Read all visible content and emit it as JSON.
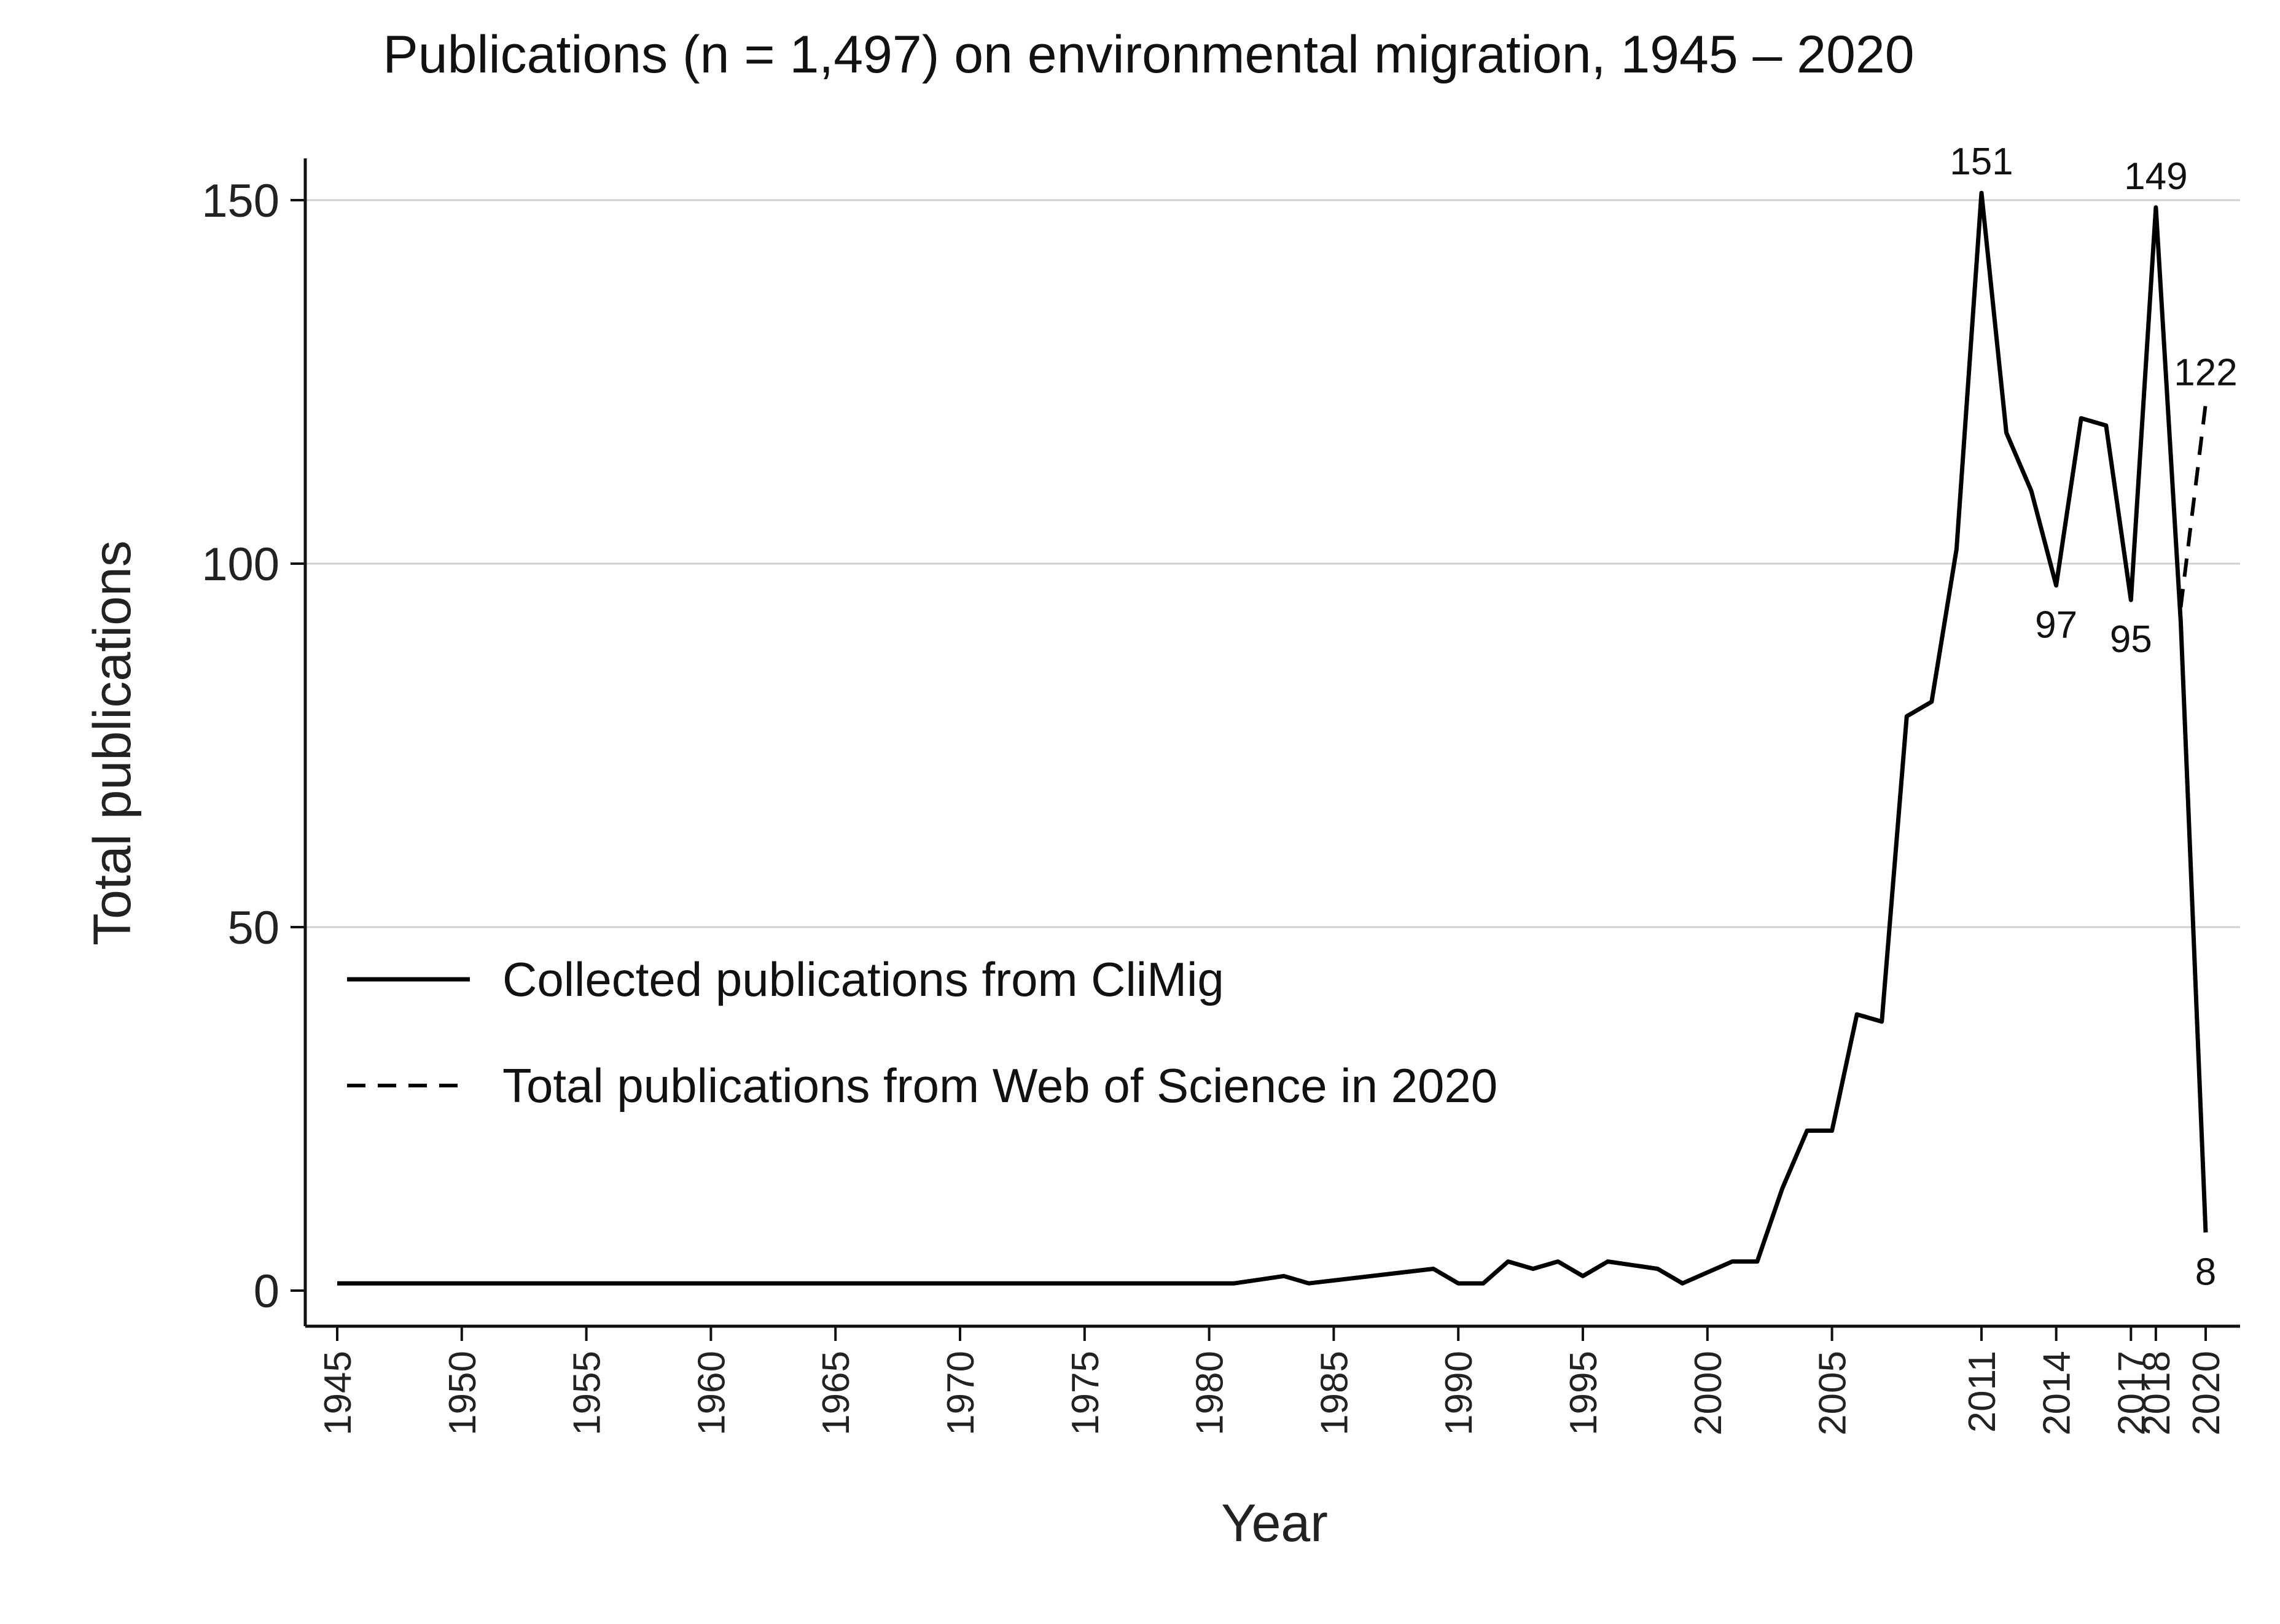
{
  "chart_data": {
    "type": "line",
    "title": "Publications (n = 1,497) on environmental migration, 1945 – 2020",
    "xlabel": "Year",
    "ylabel": "Total publications",
    "xlim": [
      1945,
      2020
    ],
    "ylim": [
      -4,
      155
    ],
    "grid": true,
    "legend_position": "middle-left",
    "yticks": [
      0,
      50,
      100,
      150
    ],
    "xticks": [
      1945,
      1950,
      1955,
      1960,
      1965,
      1970,
      1975,
      1980,
      1985,
      1990,
      1995,
      2000,
      2005,
      2011,
      2014,
      2017,
      2018,
      2020
    ],
    "series": [
      {
        "name": "Collected publications from CliMig",
        "style": "solid",
        "color": "#000000",
        "points": [
          [
            1945,
            1
          ],
          [
            1981,
            1
          ],
          [
            1983,
            2
          ],
          [
            1984,
            1
          ],
          [
            1989,
            3
          ],
          [
            1990,
            1
          ],
          [
            1991,
            1
          ],
          [
            1992,
            4
          ],
          [
            1993,
            3
          ],
          [
            1994,
            4
          ],
          [
            1995,
            2
          ],
          [
            1996,
            4
          ],
          [
            1998,
            3
          ],
          [
            1999,
            1
          ],
          [
            2001,
            4
          ],
          [
            2002,
            4
          ],
          [
            2003,
            14
          ],
          [
            2004,
            22
          ],
          [
            2005,
            22
          ],
          [
            2006,
            38
          ],
          [
            2007,
            37
          ],
          [
            2008,
            79
          ],
          [
            2009,
            81
          ],
          [
            2010,
            102
          ],
          [
            2011,
            151
          ],
          [
            2012,
            118
          ],
          [
            2013,
            110
          ],
          [
            2014,
            97
          ],
          [
            2015,
            120
          ],
          [
            2016,
            119
          ],
          [
            2017,
            95
          ],
          [
            2018,
            149
          ],
          [
            2019,
            92
          ],
          [
            2020,
            8
          ]
        ]
      },
      {
        "name": "Total publications from Web of Science in 2020",
        "style": "dashed",
        "color": "#000000",
        "points": [
          [
            2019,
            94
          ],
          [
            2020,
            122
          ]
        ]
      }
    ],
    "annotations": [
      {
        "text": "151",
        "x": 2011,
        "y": 151,
        "pos": "above"
      },
      {
        "text": "149",
        "x": 2018,
        "y": 149,
        "pos": "above"
      },
      {
        "text": "122",
        "x": 2020,
        "y": 122,
        "pos": "above"
      },
      {
        "text": "97",
        "x": 2014,
        "y": 97,
        "pos": "below"
      },
      {
        "text": "95",
        "x": 2017,
        "y": 95,
        "pos": "below"
      },
      {
        "text": "8",
        "x": 2020,
        "y": 8,
        "pos": "below"
      }
    ]
  }
}
